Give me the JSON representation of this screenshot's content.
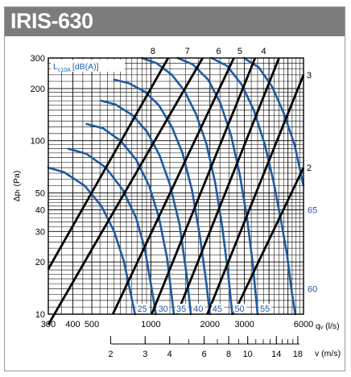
{
  "title": "IRIS-630",
  "chart_data": {
    "type": "line",
    "title": "IRIS-630",
    "xlabel": "qᵥ (l/s)",
    "ylabel": "Δpₜ (Pa)",
    "x_scale": "log",
    "y_scale": "log",
    "xlim": [
      300,
      6000
    ],
    "ylim": [
      10,
      300
    ],
    "x_ticks": [
      {
        "value": 300,
        "label": "300"
      },
      {
        "value": 400,
        "label": "400"
      },
      {
        "value": 500,
        "label": "500"
      },
      {
        "value": 1000,
        "label": "1000"
      },
      {
        "value": 2000,
        "label": "2000"
      },
      {
        "value": 3000,
        "label": "3000"
      },
      {
        "value": 6000,
        "label": "6000"
      }
    ],
    "y_ticks": [
      {
        "value": 10,
        "label": "10"
      },
      {
        "value": 20,
        "label": "20"
      },
      {
        "value": 30,
        "label": "30"
      },
      {
        "value": 40,
        "label": "40"
      },
      {
        "value": 50,
        "label": "50"
      },
      {
        "value": 100,
        "label": "100"
      },
      {
        "value": 200,
        "label": "200"
      },
      {
        "value": 300,
        "label": "300"
      }
    ],
    "velocity_axis": {
      "label": "v (m/s)",
      "ticks": [
        "2",
        "3",
        "4",
        "6",
        "8",
        "10",
        "14",
        "18"
      ]
    },
    "sound_legend": "L_c10A [dB(A)]",
    "sound_legend_main": "L",
    "sound_legend_sub": "c10A",
    "sound_legend_rest": "[dB(A)]",
    "damper_lines": [
      {
        "label": "8",
        "points": [
          [
            300,
            18.2
          ],
          [
            1225,
            300
          ]
        ]
      },
      {
        "label": "7",
        "points": [
          [
            300,
            8.7
          ],
          [
            1836,
            300
          ]
        ]
      },
      {
        "label": "6",
        "points": [
          [
            640,
            10
          ],
          [
            2650,
            300
          ]
        ]
      },
      {
        "label": "5",
        "points": [
          [
            1010,
            10
          ],
          [
            3400,
            300
          ]
        ]
      },
      {
        "label": "4",
        "points": [
          [
            1360,
            10
          ],
          [
            4500,
            300
          ]
        ]
      },
      {
        "label": "3",
        "points": [
          [
            1940,
            10
          ],
          [
            6000,
            240
          ]
        ]
      },
      {
        "label": "2",
        "points": [
          [
            2640,
            10
          ],
          [
            6000,
            70
          ]
        ]
      }
    ],
    "sound_curves": [
      {
        "label": "25",
        "points": [
          [
            300,
            70
          ],
          [
            360,
            66
          ],
          [
            460,
            55
          ],
          [
            560,
            42
          ],
          [
            650,
            30
          ],
          [
            730,
            20
          ],
          [
            780,
            14
          ],
          [
            830,
            10
          ]
        ]
      },
      {
        "label": "30",
        "points": [
          [
            380,
            90
          ],
          [
            470,
            84
          ],
          [
            590,
            70
          ],
          [
            720,
            52
          ],
          [
            840,
            36
          ],
          [
            930,
            24
          ],
          [
            1000,
            15
          ],
          [
            1060,
            10
          ]
        ]
      },
      {
        "label": "35",
        "points": [
          [
            470,
            125
          ],
          [
            570,
            118
          ],
          [
            700,
            100
          ],
          [
            840,
            78
          ],
          [
            980,
            55
          ],
          [
            1100,
            36
          ],
          [
            1210,
            21
          ],
          [
            1310,
            10
          ]
        ]
      },
      {
        "label": "40",
        "points": [
          [
            560,
            170
          ],
          [
            660,
            162
          ],
          [
            810,
            140
          ],
          [
            960,
            112
          ],
          [
            1110,
            82
          ],
          [
            1250,
            56
          ],
          [
            1400,
            33
          ],
          [
            1520,
            17
          ],
          [
            1600,
            10
          ]
        ]
      },
      {
        "label": "45",
        "points": [
          [
            650,
            225
          ],
          [
            770,
            215
          ],
          [
            930,
            192
          ],
          [
            1100,
            160
          ],
          [
            1280,
            120
          ],
          [
            1450,
            85
          ],
          [
            1620,
            52
          ],
          [
            1780,
            28
          ],
          [
            1920,
            15
          ],
          [
            2000,
            10
          ]
        ]
      },
      {
        "label": "50",
        "points": [
          [
            900,
            300
          ],
          [
            1070,
            280
          ],
          [
            1280,
            240
          ],
          [
            1480,
            195
          ],
          [
            1700,
            142
          ],
          [
            1920,
            96
          ],
          [
            2130,
            57
          ],
          [
            2310,
            32
          ],
          [
            2480,
            17
          ],
          [
            2600,
            10
          ]
        ]
      },
      {
        "label": "55",
        "points": [
          [
            1370,
            300
          ],
          [
            1640,
            275
          ],
          [
            1960,
            225
          ],
          [
            2260,
            165
          ],
          [
            2560,
            108
          ],
          [
            2830,
            65
          ],
          [
            3090,
            36
          ],
          [
            3300,
            20
          ],
          [
            3500,
            10
          ]
        ]
      },
      {
        "label": "60",
        "points": [
          [
            2040,
            300
          ],
          [
            2450,
            270
          ],
          [
            2910,
            210
          ],
          [
            3350,
            150
          ],
          [
            3800,
            96
          ],
          [
            4220,
            58
          ],
          [
            4600,
            35
          ],
          [
            4950,
            22
          ],
          [
            5200,
            14
          ],
          [
            5450,
            10
          ]
        ]
      },
      {
        "label": "65",
        "points": [
          [
            2980,
            300
          ],
          [
            3550,
            265
          ],
          [
            4150,
            205
          ],
          [
            4750,
            145
          ],
          [
            5400,
            95
          ],
          [
            6000,
            55
          ]
        ]
      }
    ]
  }
}
